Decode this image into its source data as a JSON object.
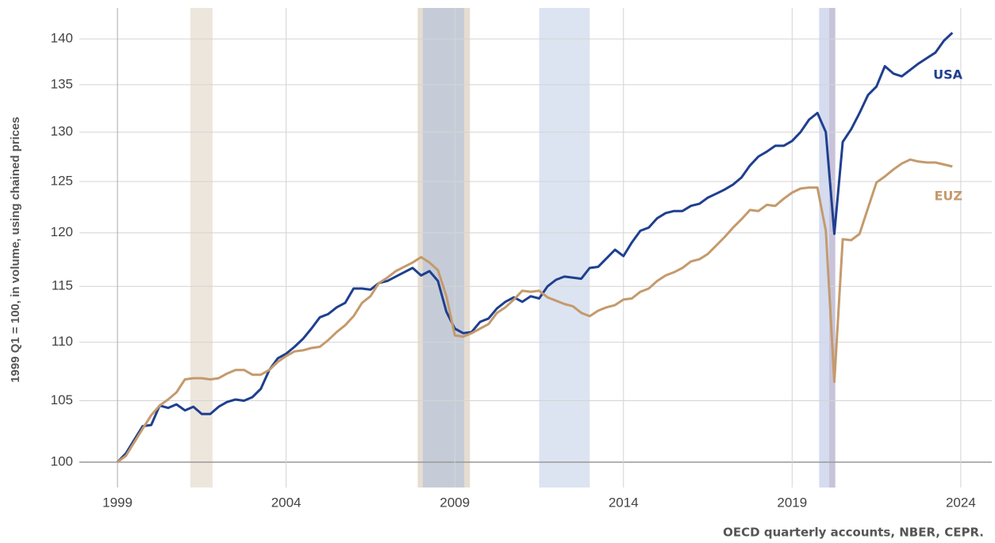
{
  "chart_data": {
    "type": "line",
    "ylabel": "1999 Q1 = 100, in volume, using chained prices",
    "source": "OECD quarterly accounts, NBER, CEPR.",
    "log_scale": true,
    "grid": true,
    "xlim": [
      1997.87,
      2024.92
    ],
    "xticks": [
      1999,
      2004,
      2009,
      2014,
      2019,
      2024
    ],
    "ylim": [
      98,
      143.5
    ],
    "yticks": [
      100,
      105,
      110,
      115,
      120,
      125,
      130,
      135,
      140
    ],
    "bands": [
      {
        "x": [
          2001.16,
          2001.82
        ],
        "color": "#ede6dd"
      },
      {
        "x": [
          2007.9,
          2009.45
        ],
        "color": "#e6ddd2"
      },
      {
        "x": [
          2008.05,
          2009.28
        ],
        "color": "#c6ccd7"
      },
      {
        "x": [
          2011.5,
          2013.0
        ],
        "color": "#dce4f1"
      },
      {
        "x": [
          2019.8,
          2020.17
        ],
        "color": "#d5dcf0"
      },
      {
        "x": [
          2020.1,
          2020.28
        ],
        "color": "#c8c3d9"
      }
    ],
    "x": [
      1999,
      1999.25,
      1999.5,
      1999.75,
      2000,
      2000.25,
      2000.5,
      2000.75,
      2001,
      2001.25,
      2001.5,
      2001.75,
      2002,
      2002.25,
      2002.5,
      2002.75,
      2003,
      2003.25,
      2003.5,
      2003.75,
      2004,
      2004.25,
      2004.5,
      2004.75,
      2005,
      2005.25,
      2005.5,
      2005.75,
      2006,
      2006.25,
      2006.5,
      2006.75,
      2007,
      2007.25,
      2007.5,
      2007.75,
      2008,
      2008.25,
      2008.5,
      2008.75,
      2009,
      2009.25,
      2009.5,
      2009.75,
      2010,
      2010.25,
      2010.5,
      2010.75,
      2011,
      2011.25,
      2011.5,
      2011.75,
      2012,
      2012.25,
      2012.5,
      2012.75,
      2013,
      2013.25,
      2013.5,
      2013.75,
      2014,
      2014.25,
      2014.5,
      2014.75,
      2015,
      2015.25,
      2015.5,
      2015.75,
      2016,
      2016.25,
      2016.5,
      2016.75,
      2017,
      2017.25,
      2017.5,
      2017.75,
      2018,
      2018.25,
      2018.5,
      2018.75,
      2019,
      2019.25,
      2019.5,
      2019.75,
      2020,
      2020.25,
      2020.5,
      2020.75,
      2021,
      2021.25,
      2021.5,
      2021.75,
      2022,
      2022.25,
      2022.5,
      2022.75,
      2023,
      2023.25,
      2023.5,
      2023.75
    ],
    "series": [
      {
        "name": "USA",
        "color": "#1f3f8f",
        "values": [
          100,
          100.7,
          101.8,
          102.9,
          103.0,
          104.6,
          104.4,
          104.7,
          104.2,
          104.5,
          103.9,
          103.9,
          104.5,
          104.9,
          105.1,
          105.0,
          105.3,
          106.0,
          107.6,
          108.6,
          109.0,
          109.6,
          110.3,
          111.2,
          112.2,
          112.5,
          113.1,
          113.5,
          114.8,
          114.8,
          114.7,
          115.3,
          115.5,
          115.9,
          116.3,
          116.7,
          116.0,
          116.4,
          115.5,
          112.7,
          111.2,
          110.8,
          110.9,
          111.8,
          112.1,
          113.0,
          113.6,
          114.0,
          113.6,
          114.1,
          113.9,
          115.0,
          115.6,
          115.9,
          115.8,
          115.7,
          116.7,
          116.8,
          117.6,
          118.4,
          117.8,
          119.1,
          120.2,
          120.5,
          121.4,
          121.9,
          122.1,
          122.1,
          122.6,
          122.8,
          123.4,
          123.8,
          124.2,
          124.7,
          125.4,
          126.6,
          127.5,
          128.0,
          128.6,
          128.6,
          129.1,
          130.0,
          131.3,
          132.0,
          130.0,
          119.9,
          129.0,
          130.3,
          132.0,
          133.9,
          134.8,
          137.0,
          136.2,
          135.9,
          136.6,
          137.3,
          137.9,
          138.5,
          139.8,
          140.7
        ]
      },
      {
        "name": "EUZ",
        "color": "#c49a6c",
        "values": [
          100,
          100.5,
          101.6,
          102.7,
          103.8,
          104.6,
          105.1,
          105.7,
          106.8,
          106.9,
          106.9,
          106.8,
          106.9,
          107.3,
          107.6,
          107.6,
          107.2,
          107.2,
          107.6,
          108.3,
          108.8,
          109.2,
          109.3,
          109.5,
          109.6,
          110.2,
          110.9,
          111.5,
          112.3,
          113.5,
          114.1,
          115.3,
          115.8,
          116.4,
          116.8,
          117.2,
          117.7,
          117.2,
          116.5,
          114.1,
          110.6,
          110.5,
          110.8,
          111.2,
          111.6,
          112.6,
          113.1,
          113.8,
          114.6,
          114.5,
          114.6,
          114.0,
          113.7,
          113.4,
          113.2,
          112.6,
          112.3,
          112.8,
          113.1,
          113.3,
          113.8,
          113.9,
          114.5,
          114.8,
          115.5,
          116.0,
          116.3,
          116.7,
          117.3,
          117.5,
          118.0,
          118.8,
          119.6,
          120.5,
          121.3,
          122.2,
          122.1,
          122.7,
          122.6,
          123.3,
          123.9,
          124.3,
          124.4,
          124.4,
          120.2,
          106.6,
          119.4,
          119.3,
          119.9,
          122.4,
          124.9,
          125.5,
          126.2,
          126.8,
          127.2,
          127.0,
          126.9,
          126.9,
          126.7,
          126.5
        ]
      }
    ]
  }
}
